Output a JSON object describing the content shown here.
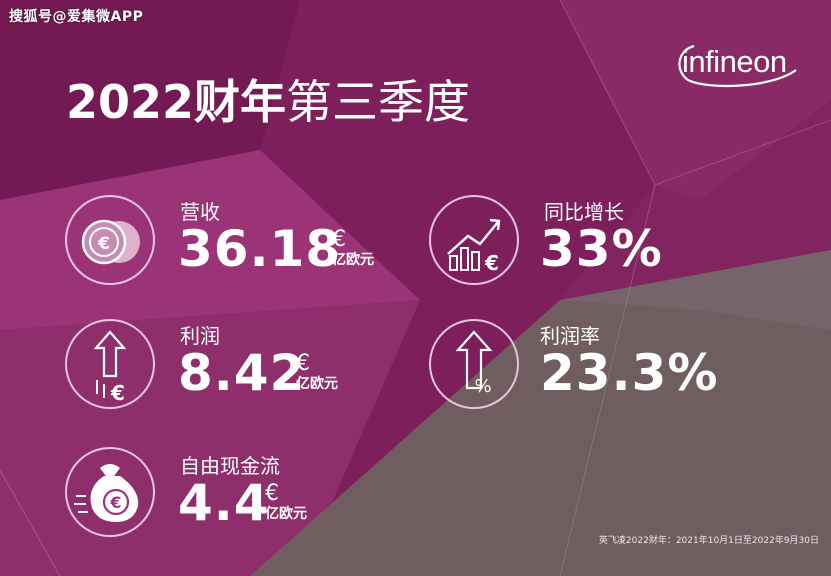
{
  "watermark": "搜狐号@爱集微APP",
  "brand": {
    "logo_text": "infineon"
  },
  "title": {
    "bold": "2022财年",
    "light": "第三季度"
  },
  "metrics": {
    "revenue": {
      "label": "营收",
      "value": "36.18",
      "currency": "€",
      "unit": "亿欧元"
    },
    "growth": {
      "label": "同比增长",
      "value": "33%"
    },
    "profit": {
      "label": "利润",
      "value": "8.42",
      "currency": "€",
      "unit": "亿欧元"
    },
    "margin": {
      "label": "利润率",
      "value": "23.3%"
    },
    "cashflow": {
      "label": "自由现金流",
      "value": "4.4",
      "currency": "€",
      "unit": "亿欧元"
    }
  },
  "footnote": "英飞凌2022财年：2021年10月1日至2022年9月30日",
  "colors": {
    "plum": "#7a1d58",
    "magenta": "#9e3478",
    "taupe": "#6f5d60",
    "text": "#ffffff"
  },
  "icons": {
    "revenue": "euro-coins-icon",
    "growth": "bar-chart-up-icon",
    "profit": "arrow-up-euro-icon",
    "margin": "arrow-up-percent-icon",
    "cashflow": "money-bag-euro-icon"
  }
}
